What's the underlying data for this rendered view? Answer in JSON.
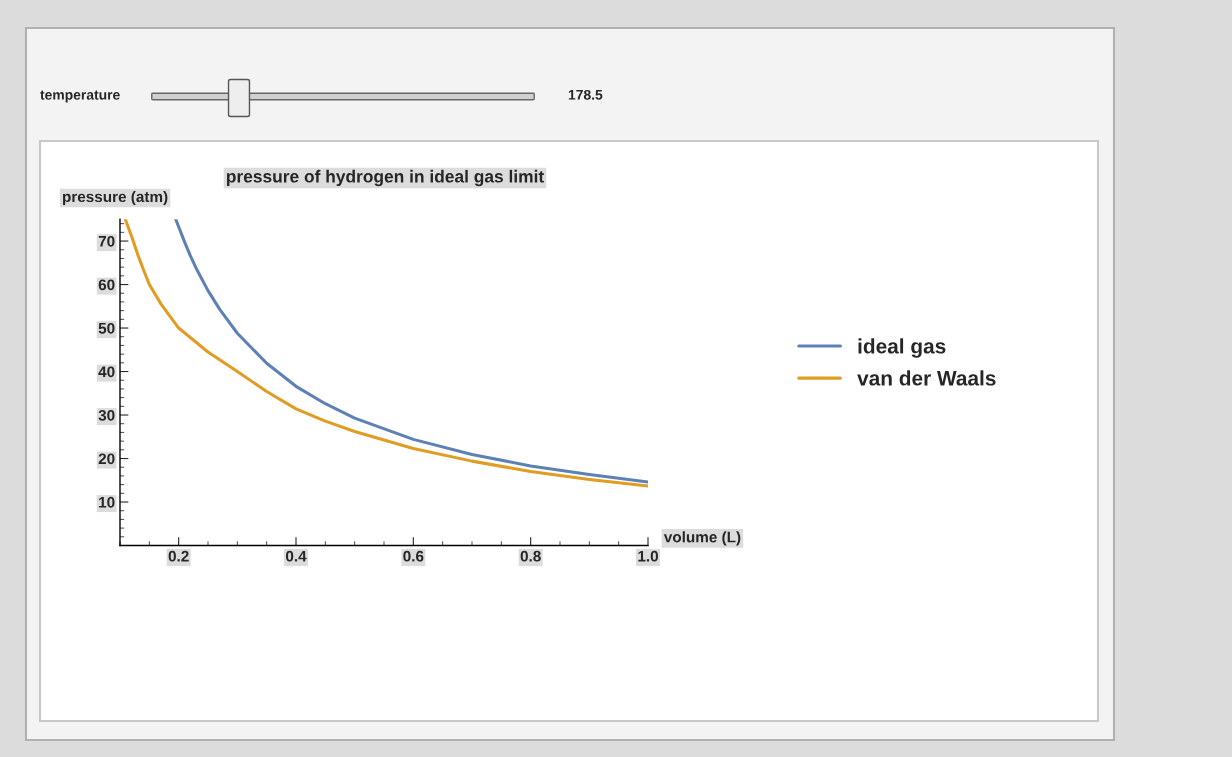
{
  "chart_data": {
    "type": "line",
    "title": "pressure of hydrogen in ideal gas limit",
    "xlabel": "volume (L)",
    "ylabel": "pressure (atm)",
    "annotations": [
      "temperature",
      "178.5"
    ],
    "series": [
      {
        "name": "ideal gas",
        "color": "#5e81b5",
        "x": [
          0.195,
          0.21,
          0.22,
          0.23,
          0.25,
          0.27,
          0.3,
          0.35,
          0.4,
          0.45,
          0.5,
          0.6,
          0.7,
          0.8,
          0.9,
          1.0
        ],
        "values": [
          75,
          69.8,
          66.6,
          63.7,
          58.6,
          54.3,
          48.8,
          41.9,
          36.6,
          32.6,
          29.3,
          24.4,
          20.9,
          18.3,
          16.3,
          14.6
        ]
      },
      {
        "name": "van der Waals",
        "color": "#e19c24",
        "x": [
          0.109,
          0.12,
          0.13,
          0.14,
          0.15,
          0.17,
          0.2,
          0.25,
          0.3,
          0.35,
          0.4,
          0.45,
          0.5,
          0.6,
          0.7,
          0.8,
          0.9,
          1.0
        ],
        "values": [
          75,
          71,
          67,
          63.4,
          60,
          55.5,
          50,
          44.5,
          40,
          35.4,
          31.4,
          28.6,
          26.2,
          22.3,
          19.4,
          17.0,
          15.2,
          13.7
        ]
      }
    ],
    "xlim": [
      0.1,
      1.0
    ],
    "ylim": [
      0,
      75
    ],
    "xticks": [
      0.2,
      0.4,
      0.6,
      0.8,
      {
        "value": 1.0,
        "label": "1.0"
      }
    ],
    "yticks": [
      10,
      20,
      30,
      40,
      50,
      60,
      70
    ],
    "grid": false,
    "legend": "right",
    "line_style": "solid",
    "marker": "none"
  }
}
